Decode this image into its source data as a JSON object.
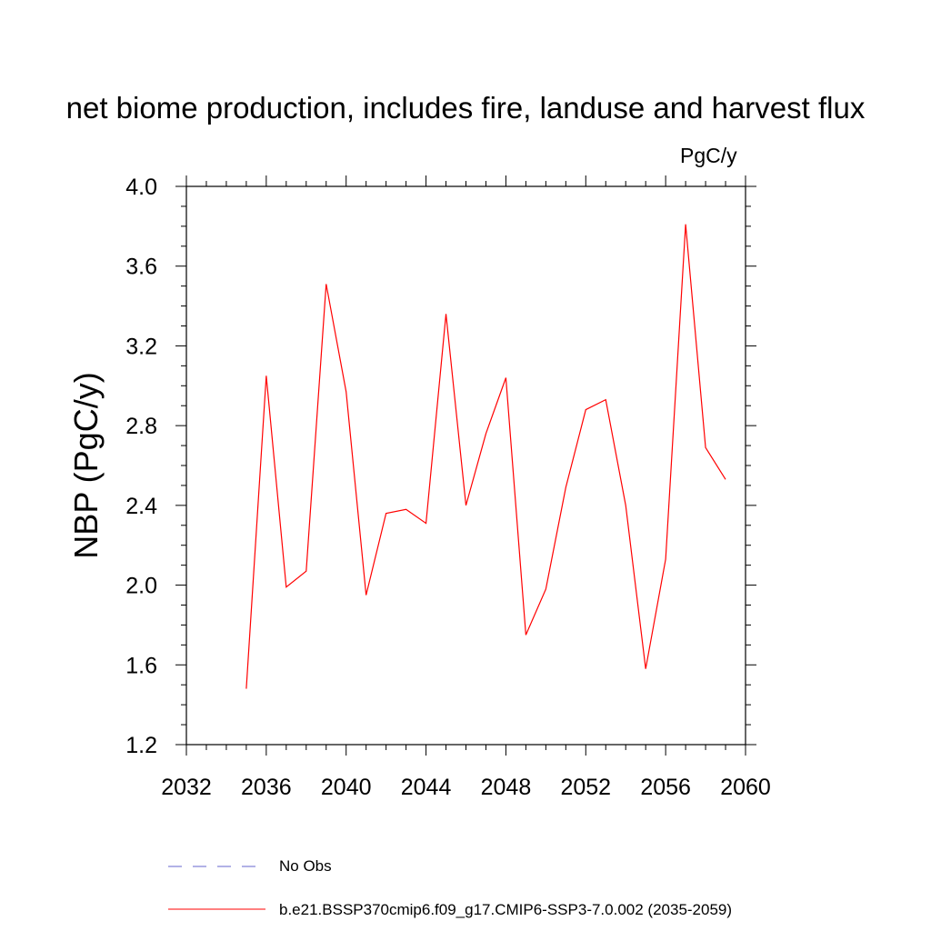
{
  "chart_data": {
    "type": "line",
    "title": "net biome production, includes fire, landuse and harvest flux",
    "units": "PgC/y",
    "ylabel": "NBP  (PgC/y)",
    "xlabel": "",
    "xlim": [
      2032,
      2060
    ],
    "ylim": [
      1.2,
      4.0
    ],
    "xticks": [
      2032,
      2036,
      2040,
      2044,
      2048,
      2052,
      2056,
      2060
    ],
    "yticks": [
      "1.2",
      "1.6",
      "2.0",
      "2.4",
      "2.8",
      "3.2",
      "3.6",
      "4.0"
    ],
    "x": [
      2035,
      2036,
      2037,
      2038,
      2039,
      2040,
      2041,
      2042,
      2043,
      2044,
      2045,
      2046,
      2047,
      2048,
      2049,
      2050,
      2051,
      2052,
      2053,
      2054,
      2055,
      2056,
      2057,
      2058,
      2059
    ],
    "series": [
      {
        "name": "b.e21.BSSP370cmip6.f09_g17.CMIP6-SSP3-7.0.002 (2035-2059)",
        "color": "#ff0000",
        "values": [
          1.48,
          3.05,
          1.99,
          2.07,
          3.51,
          2.97,
          1.95,
          2.36,
          2.38,
          2.31,
          3.36,
          2.4,
          2.76,
          3.04,
          1.75,
          1.98,
          2.49,
          2.88,
          2.93,
          2.4,
          1.58,
          2.13,
          3.81,
          2.69,
          2.53
        ]
      }
    ],
    "legend": [
      {
        "label": "No Obs",
        "color": "#6666cc",
        "style": "dashed"
      },
      {
        "label": "b.e21.BSSP370cmip6.f09_g17.CMIP6-SSP3-7.0.002 (2035-2059)",
        "color": "#ff0000",
        "style": "solid"
      }
    ],
    "legend_position": "bottom",
    "grid": false
  }
}
